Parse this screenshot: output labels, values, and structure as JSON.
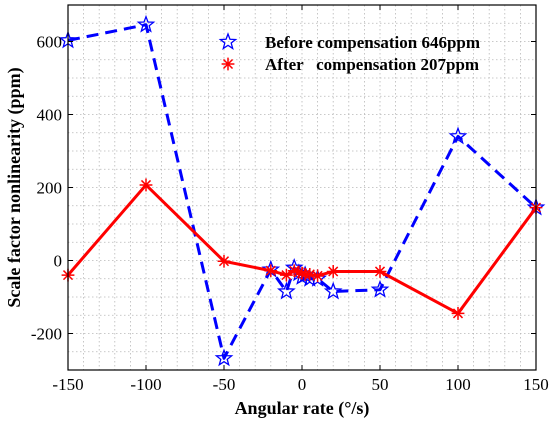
{
  "chart_data": {
    "type": "line",
    "title": "",
    "xlabel": "Angular rate (°/s)",
    "ylabel": "Scale factor nonlinearity (ppm)",
    "xlim": [
      -150,
      150
    ],
    "ylim": [
      -300,
      700
    ],
    "xticks": [
      -150,
      -100,
      -50,
      0,
      50,
      100,
      150
    ],
    "yticks": [
      -200,
      0,
      200,
      400,
      600
    ],
    "xtick_labels": [
      "-150",
      "-100",
      "-50",
      "0",
      "50",
      "100",
      "150"
    ],
    "ytick_labels": [
      "-200",
      "0",
      "200",
      "400",
      "600"
    ],
    "grid": true,
    "legend_position": "top-right",
    "series": [
      {
        "name": "Before compensation 646ppm",
        "color": "#0000ff",
        "line_style": "dashed",
        "marker": "star",
        "points": [
          [
            -150,
            603
          ],
          [
            -100,
            646
          ],
          [
            -50,
            -268
          ],
          [
            -20,
            -25
          ],
          [
            -10,
            -85
          ],
          [
            -5,
            -20
          ],
          [
            -2,
            -35
          ],
          [
            0,
            -45
          ],
          [
            2,
            -40
          ],
          [
            5,
            -50
          ],
          [
            10,
            -50
          ],
          [
            20,
            -85
          ],
          [
            50,
            -80
          ],
          [
            100,
            340
          ],
          [
            150,
            145
          ]
        ]
      },
      {
        "name": "After   compensation 207ppm",
        "color": "#ff0000",
        "line_style": "solid",
        "marker": "asterisk",
        "points": [
          [
            -150,
            -40
          ],
          [
            -100,
            207
          ],
          [
            -50,
            -2
          ],
          [
            -20,
            -28
          ],
          [
            -10,
            -40
          ],
          [
            -5,
            -28
          ],
          [
            -2,
            -32
          ],
          [
            0,
            -35
          ],
          [
            2,
            -38
          ],
          [
            5,
            -38
          ],
          [
            10,
            -42
          ],
          [
            20,
            -30
          ],
          [
            50,
            -30
          ],
          [
            100,
            -145
          ],
          [
            150,
            145
          ]
        ]
      }
    ]
  }
}
